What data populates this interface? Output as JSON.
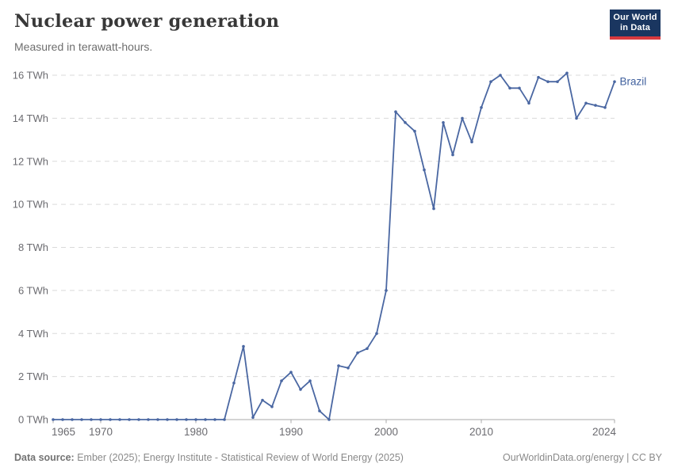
{
  "header": {
    "title": "Nuclear power generation",
    "subtitle": "Measured in terawatt-hours.",
    "logo": {
      "line1": "Our World",
      "line2": "in Data"
    }
  },
  "chart_data": {
    "type": "line",
    "title": "Nuclear power generation",
    "subtitle": "Measured in terawatt-hours.",
    "unit": "TWh",
    "grid": "horizontal-dashed",
    "legend_position": "end-of-line-label",
    "xlim": [
      1965,
      2024
    ],
    "ylim": [
      0,
      16
    ],
    "x_ticks": [
      {
        "label": "1965",
        "value": 1965
      },
      {
        "label": "1970",
        "value": 1970
      },
      {
        "label": "1980",
        "value": 1980
      },
      {
        "label": "1990",
        "value": 1990
      },
      {
        "label": "2000",
        "value": 2000
      },
      {
        "label": "2010",
        "value": 2010
      },
      {
        "label": "2024",
        "value": 2024
      }
    ],
    "y_ticks": [
      {
        "label": "0 TWh",
        "value": 0
      },
      {
        "label": "2 TWh",
        "value": 2
      },
      {
        "label": "4 TWh",
        "value": 4
      },
      {
        "label": "6 TWh",
        "value": 6
      },
      {
        "label": "8 TWh",
        "value": 8
      },
      {
        "label": "10 TWh",
        "value": 10
      },
      {
        "label": "12 TWh",
        "value": 12
      },
      {
        "label": "14 TWh",
        "value": 14
      },
      {
        "label": "16 TWh",
        "value": 16
      }
    ],
    "series": [
      {
        "name": "Brazil",
        "color": "#4a67a2",
        "x": [
          1965,
          1966,
          1967,
          1968,
          1969,
          1970,
          1971,
          1972,
          1973,
          1974,
          1975,
          1976,
          1977,
          1978,
          1979,
          1980,
          1981,
          1982,
          1983,
          1984,
          1985,
          1986,
          1987,
          1988,
          1989,
          1990,
          1991,
          1992,
          1993,
          1994,
          1995,
          1996,
          1997,
          1998,
          1999,
          2000,
          2001,
          2002,
          2003,
          2004,
          2005,
          2006,
          2007,
          2008,
          2009,
          2010,
          2011,
          2012,
          2013,
          2014,
          2015,
          2016,
          2017,
          2018,
          2019,
          2020,
          2021,
          2022,
          2023,
          2024
        ],
        "values": [
          0,
          0,
          0,
          0,
          0,
          0,
          0,
          0,
          0,
          0,
          0,
          0,
          0,
          0,
          0,
          0,
          0,
          0,
          0,
          1.7,
          3.4,
          0.1,
          0.9,
          0.6,
          1.8,
          2.2,
          1.4,
          1.8,
          0.4,
          0,
          2.5,
          2.4,
          3.1,
          3.3,
          4.0,
          6.0,
          14.3,
          13.8,
          13.4,
          11.6,
          9.8,
          13.8,
          12.3,
          14.0,
          12.9,
          14.5,
          15.7,
          16.0,
          15.4,
          15.4,
          14.7,
          15.9,
          15.7,
          15.7,
          16.1,
          14.0,
          14.7,
          14.6,
          14.5,
          15.7
        ]
      }
    ]
  },
  "footer": {
    "source_label": "Data source:",
    "source_text": " Ember (2025); Energy Institute - Statistical Review of World Energy (2025)",
    "credit": "OurWorldinData.org/energy | CC BY"
  },
  "colors": {
    "line": "#4a67a2",
    "series_label": "#41619e",
    "gridline": "#dadada",
    "axis": "#a8a8a8",
    "tick_text": "#6b6b70",
    "logo_bg": "#1a3660",
    "logo_accent": "#d93a3f"
  }
}
